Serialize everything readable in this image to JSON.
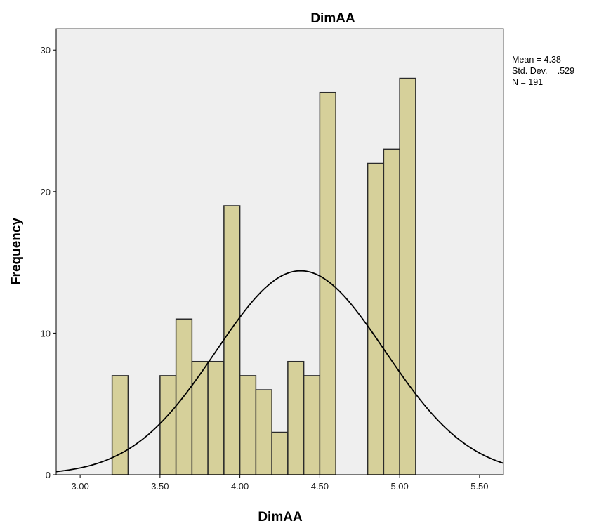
{
  "chart_data": {
    "type": "bar",
    "chart_subtype": "histogram",
    "title": "DimAA",
    "xlabel": "DimAA",
    "ylabel": "Frequency",
    "xlim": [
      2.85,
      5.65
    ],
    "ylim": [
      0,
      31.5
    ],
    "bin_width": 0.1,
    "x_ticks": [
      {
        "value": 3.0,
        "label": "3.00"
      },
      {
        "value": 3.5,
        "label": "3.50"
      },
      {
        "value": 4.0,
        "label": "4.00"
      },
      {
        "value": 4.5,
        "label": "4.50"
      },
      {
        "value": 5.0,
        "label": "5.00"
      },
      {
        "value": 5.5,
        "label": "5.50"
      }
    ],
    "y_ticks": [
      {
        "value": 0,
        "label": "0"
      },
      {
        "value": 10,
        "label": "10"
      },
      {
        "value": 20,
        "label": "20"
      },
      {
        "value": 30,
        "label": "30"
      }
    ],
    "bins": [
      {
        "start": 3.2,
        "end": 3.3,
        "count": 7
      },
      {
        "start": 3.5,
        "end": 3.6,
        "count": 7
      },
      {
        "start": 3.6,
        "end": 3.7,
        "count": 11
      },
      {
        "start": 3.7,
        "end": 3.8,
        "count": 8
      },
      {
        "start": 3.8,
        "end": 3.9,
        "count": 8
      },
      {
        "start": 3.9,
        "end": 4.0,
        "count": 19
      },
      {
        "start": 4.0,
        "end": 4.1,
        "count": 7
      },
      {
        "start": 4.1,
        "end": 4.2,
        "count": 6
      },
      {
        "start": 4.2,
        "end": 4.3,
        "count": 3
      },
      {
        "start": 4.3,
        "end": 4.4,
        "count": 8
      },
      {
        "start": 4.4,
        "end": 4.5,
        "count": 7
      },
      {
        "start": 4.5,
        "end": 4.6,
        "count": 27
      },
      {
        "start": 4.8,
        "end": 4.9,
        "count": 22
      },
      {
        "start": 4.9,
        "end": 5.0,
        "count": 23
      },
      {
        "start": 5.0,
        "end": 5.1,
        "count": 28
      }
    ],
    "normal_curve": {
      "mean": 4.38,
      "std_dev": 0.529,
      "n": 191
    },
    "stats": {
      "mean": "Mean = 4.38",
      "std_dev": "Std. Dev. = .529",
      "n": "N = 191"
    },
    "grid": false,
    "legend": "none",
    "colors": {
      "bar_fill": "#d6d09a",
      "bar_stroke": "#2b2b2b",
      "plot_background": "#efefef",
      "curve": "#000000"
    }
  }
}
